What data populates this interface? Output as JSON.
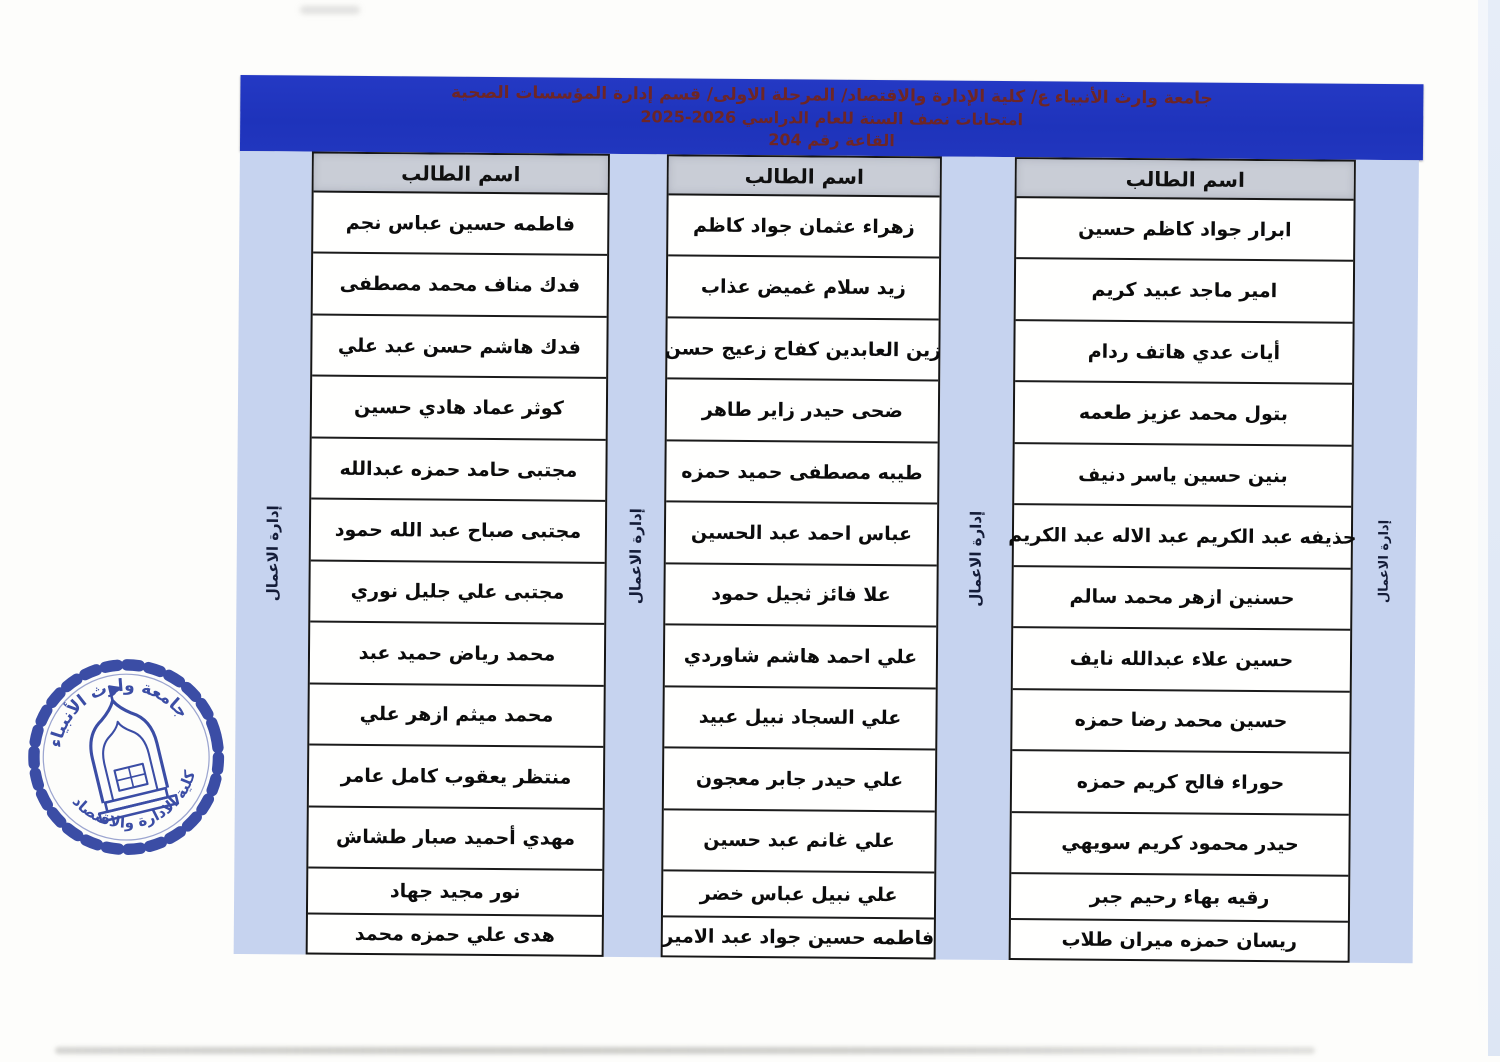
{
  "document": {
    "title_line1": "جامعة وارث الأنبياء ع/ كلية الإدارة والاقتصاد/ المرحلة الاولى/ قسم إدارة المؤسسات الصحية",
    "title_line2": "امتحانات نصف السنة للعام الدراسي 2026-2025",
    "title_line3": "القاعة رقم 204"
  },
  "room_number": "204",
  "academic_year": "2025-2026",
  "side_label": "إدارة الاعمال",
  "column_header": "اسم الطالب",
  "columns": {
    "right": {
      "names": [
        "ابرار جواد كاظم حسين",
        "امير ماجد عبيد كريم",
        "أيات عدي هاتف ردام",
        "بتول محمد عزيز طعمه",
        "بنين حسين ياسر دنيف",
        "حذيفه عبد الكريم عبد الاله عبد الكريم",
        "حسنين ازهر محمد سالم",
        "حسين علاء عبدالله نايف",
        "حسين محمد رضا حمزه",
        "حوراء فالح كريم حمزه",
        "حيدر محمود كريم سويهي",
        "رقيه بهاء رحيم جبر",
        "ريسان حمزه ميران طلاب"
      ]
    },
    "middle": {
      "names": [
        "زهراء عثمان جواد كاظم",
        "زيد سلام غميض عذاب",
        "زين العابدين كفاح زعيج حسن",
        "ضحى حيدر زاير طاهر",
        "طيبه مصطفى حميد حمزه",
        "عباس احمد عبد الحسين",
        "علا فائز ثجيل حمود",
        "علي احمد هاشم شاوردي",
        "علي السجاد نبيل عبيد",
        "علي حيدر جابر معجون",
        "علي غانم عبد حسين",
        "علي نبيل عباس خضر",
        "فاطمه حسين جواد عبد الامير"
      ]
    },
    "left": {
      "names": [
        "فاطمه حسين عباس نجم",
        "فدك مناف محمد مصطفى",
        "فدك هاشم حسن عبد علي",
        "كوثر عماد هادي حسين",
        "مجتبى حامد حمزه عبدالله",
        "مجتبى صباح عبد الله حمود",
        "مجتبى علي جليل نوري",
        "محمد رياض حميد عبد",
        "محمد ميثم ازهر علي",
        "منتظر يعقوب كامل عامر",
        "مهدي أحميد صبار طشاش",
        "نور مجيد جهاد",
        "هدى علي حمزه محمد"
      ]
    }
  },
  "stamp": {
    "top_text": "جامعة وارث الأنبياء",
    "bottom_text": "كلية الادارة والاقتصاد"
  },
  "colors": {
    "header_band": "#2136be",
    "header_text": "#6e2626",
    "side_band": "#c6d3ef",
    "column_header_bg": "#c9cdd6",
    "stamp_blue": "#2b3f9e"
  }
}
